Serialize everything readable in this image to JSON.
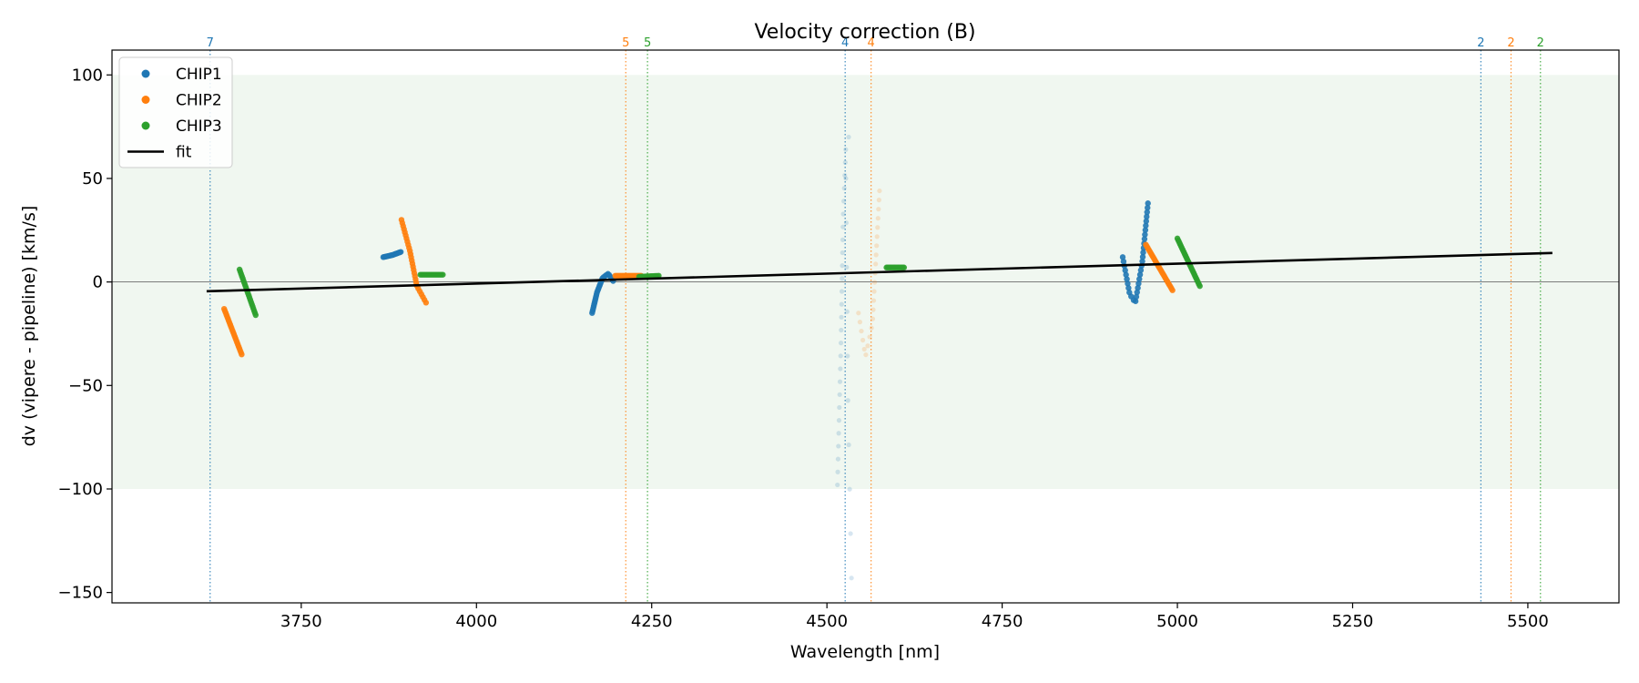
{
  "chart_data": {
    "type": "scatter",
    "title": "Velocity correction (B)",
    "xlabel": "Wavelength [nm]",
    "ylabel": "dv (vipere - pipeline) [km/s]",
    "xlim": [
      3480,
      5630
    ],
    "ylim": [
      -155,
      112
    ],
    "x_ticks": [
      3750,
      4000,
      4250,
      4500,
      4750,
      5000,
      5250,
      5500
    ],
    "y_ticks": [
      100,
      50,
      0,
      -50,
      -100,
      -150
    ],
    "x_tick_labels": [
      "3750",
      "4000",
      "4250",
      "4500",
      "4750",
      "5000",
      "5250",
      "5500"
    ],
    "y_tick_labels": [
      "100",
      "50",
      "0",
      "−50",
      "−100",
      "−150"
    ],
    "shaded_band": [
      -100,
      100
    ],
    "shaded_color": "#f0f7f0",
    "zero_line": 0,
    "grid": false,
    "legend": {
      "placement": "top-left",
      "entries": [
        {
          "label": "CHIP1",
          "marker": "dot",
          "color": "#1f77b4"
        },
        {
          "label": "CHIP2",
          "marker": "dot",
          "color": "#ff7f0e"
        },
        {
          "label": "CHIP3",
          "marker": "dot",
          "color": "#2ca02c"
        },
        {
          "label": "fit",
          "marker": "line",
          "color": "#000000"
        }
      ]
    },
    "fit": {
      "x": [
        3615,
        5535
      ],
      "y": [
        -4.5,
        14
      ]
    },
    "series": [
      {
        "name": "CHIP1",
        "color": "#1f77b4",
        "segments": [
          {
            "kind": "line",
            "x": [
              3867,
              3880,
              3892
            ],
            "y": [
              12,
              13,
              14.5
            ],
            "n": 18
          },
          {
            "kind": "curve",
            "x": [
              4165,
              4172,
              4180,
              4188,
              4195
            ],
            "y": [
              -15,
              -5,
              2,
              4,
              0.5
            ],
            "n": 30
          },
          {
            "kind": "curve",
            "x": [
              4515,
              4520,
              4523,
              4527,
              4531
            ],
            "y": [
              -98,
              -30,
              30,
              65,
              70
            ],
            "n": 28,
            "faded": true
          },
          {
            "kind": "curve",
            "x": [
              4527,
              4530,
              4535
            ],
            "y": [
              50,
              -60,
              -143
            ],
            "n": 10,
            "faded": true
          },
          {
            "kind": "curve",
            "x": [
              4922,
              4932,
              4940,
              4950,
              4958
            ],
            "y": [
              12,
              -6,
              -10,
              10,
              38
            ],
            "n": 34
          }
        ]
      },
      {
        "name": "CHIP2",
        "color": "#ff7f0e",
        "segments": [
          {
            "kind": "line",
            "x": [
              3640,
              3665
            ],
            "y": [
              -13,
              -35
            ],
            "n": 24
          },
          {
            "kind": "curve",
            "x": [
              3893,
              3905,
              3915,
              3928
            ],
            "y": [
              30,
              15,
              -2,
              -10
            ],
            "n": 28
          },
          {
            "kind": "line",
            "x": [
              4198,
              4235
            ],
            "y": [
              3,
              3
            ],
            "n": 20
          },
          {
            "kind": "curve",
            "x": [
              4545,
              4555,
              4565,
              4575
            ],
            "y": [
              -15,
              -36,
              -20,
              44
            ],
            "n": 24,
            "faded": true
          },
          {
            "kind": "line",
            "x": [
              4955,
              4993
            ],
            "y": [
              18,
              -4
            ],
            "n": 28
          }
        ]
      },
      {
        "name": "CHIP3",
        "color": "#2ca02c",
        "segments": [
          {
            "kind": "line",
            "x": [
              3662,
              3685
            ],
            "y": [
              6,
              -16
            ],
            "n": 22
          },
          {
            "kind": "line",
            "x": [
              3920,
              3952
            ],
            "y": [
              3.5,
              3.5
            ],
            "n": 16
          },
          {
            "kind": "line",
            "x": [
              4232,
              4260
            ],
            "y": [
              2.5,
              3
            ],
            "n": 14
          },
          {
            "kind": "line",
            "x": [
              4585,
              4610
            ],
            "y": [
              7,
              7
            ],
            "n": 16
          },
          {
            "kind": "line",
            "x": [
              5000,
              5032
            ],
            "y": [
              21,
              -2
            ],
            "n": 26
          }
        ]
      }
    ],
    "vlines": [
      {
        "x": 3620,
        "label": "7",
        "color": "#1f77b4"
      },
      {
        "x": 4213,
        "label": "5",
        "color": "#ff7f0e"
      },
      {
        "x": 4244,
        "label": "5",
        "color": "#2ca02c"
      },
      {
        "x": 4526,
        "label": "4",
        "color": "#1f77b4"
      },
      {
        "x": 4563,
        "label": "4",
        "color": "#ff7f0e"
      },
      {
        "x": 5433,
        "label": "2",
        "color": "#1f77b4"
      },
      {
        "x": 5476,
        "label": "2",
        "color": "#ff7f0e"
      },
      {
        "x": 5518,
        "label": "2",
        "color": "#2ca02c"
      }
    ]
  }
}
